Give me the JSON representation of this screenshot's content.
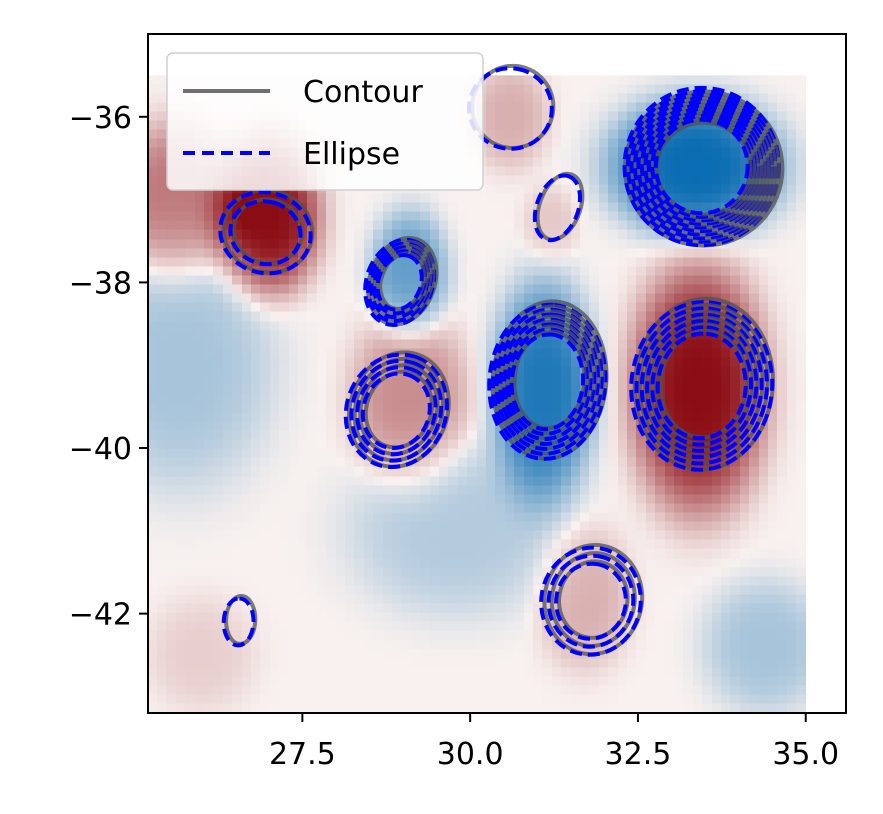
{
  "chart_data": {
    "type": "heatmap",
    "title": "",
    "xlabel": "",
    "ylabel": "",
    "xlim": [
      25.2,
      35.6
    ],
    "ylim": [
      -43.2,
      -35.0
    ],
    "field_extent": {
      "x": [
        25.2,
        35.0
      ],
      "y": [
        -43.2,
        -35.5
      ]
    },
    "xticks": [
      27.5,
      30.0,
      32.5,
      35.0
    ],
    "xtick_labels": [
      "27.5",
      "30.0",
      "32.5",
      "35.0"
    ],
    "yticks": [
      -36,
      -38,
      -40,
      -42
    ],
    "ytick_labels": [
      "−36",
      "−38",
      "−40",
      "−42"
    ],
    "colormap": "diverging red-white-blue",
    "colors": {
      "positive": "#8b0d14",
      "negative": "#0a6cb2",
      "neutral": "#f8f1ef",
      "contour": "#606060",
      "ellipse": "#0000ff"
    },
    "legend": {
      "position": "upper-left",
      "entries": [
        {
          "label": "Contour",
          "style": "solid",
          "color": "#707070"
        },
        {
          "label": "Ellipse",
          "style": "dashed",
          "color": "#0000ff"
        }
      ]
    },
    "anomalies": [
      {
        "cx": 27.0,
        "cy": -37.2,
        "rx": 0.65,
        "ry": 0.8,
        "amp": 1.0
      },
      {
        "cx": 29.1,
        "cy": -39.4,
        "rx": 0.75,
        "ry": 0.9,
        "amp": 0.4
      },
      {
        "cx": 29.1,
        "cy": -37.9,
        "rx": 0.5,
        "ry": 0.65,
        "amp": -0.6
      },
      {
        "cx": 31.1,
        "cy": -39.3,
        "rx": 0.65,
        "ry": 1.1,
        "amp": -0.9
      },
      {
        "cx": 33.35,
        "cy": -36.6,
        "rx": 1.1,
        "ry": 0.7,
        "amp": -1.0
      },
      {
        "cx": 33.4,
        "cy": -39.3,
        "rx": 0.85,
        "ry": 1.25,
        "amp": 1.0
      },
      {
        "cx": 31.7,
        "cy": -41.8,
        "rx": 0.6,
        "ry": 0.75,
        "amp": 0.25
      },
      {
        "cx": 30.6,
        "cy": -36.0,
        "rx": 0.5,
        "ry": 0.55,
        "amp": 0.25
      },
      {
        "cx": 31.2,
        "cy": -37.3,
        "rx": 0.35,
        "ry": 0.4,
        "amp": 0.15
      },
      {
        "cx": 25.7,
        "cy": -39.0,
        "rx": 1.2,
        "ry": 1.3,
        "amp": -0.3
      },
      {
        "cx": 29.8,
        "cy": -41.0,
        "rx": 1.4,
        "ry": 0.9,
        "amp": -0.25
      },
      {
        "cx": 34.4,
        "cy": -42.4,
        "rx": 0.8,
        "ry": 0.7,
        "amp": -0.3
      },
      {
        "cx": 25.6,
        "cy": -37.0,
        "rx": 0.8,
        "ry": 0.8,
        "amp": 0.5
      },
      {
        "cx": 26.0,
        "cy": -42.5,
        "rx": 0.7,
        "ry": 0.6,
        "amp": 0.12
      }
    ],
    "eddies": [
      {
        "cx": 26.95,
        "cy": -37.4,
        "rx": 0.6,
        "ry": 0.55,
        "rot": 75,
        "rings": 2
      },
      {
        "cx": 28.95,
        "cy": -38.0,
        "rx": 0.65,
        "ry": 0.4,
        "rot": 70,
        "rings": 5
      },
      {
        "cx": 28.9,
        "cy": -39.55,
        "rx": 0.85,
        "ry": 0.6,
        "rot": 70,
        "rings": 4
      },
      {
        "cx": 31.15,
        "cy": -39.2,
        "rx": 1.15,
        "ry": 0.7,
        "rot": 85,
        "rings": 7
      },
      {
        "cx": 30.6,
        "cy": -35.9,
        "rx": 0.6,
        "ry": 0.5,
        "rot": 80,
        "rings": 1
      },
      {
        "cx": 31.3,
        "cy": -37.1,
        "rx": 0.5,
        "ry": 0.25,
        "rot": 70,
        "rings": 1
      },
      {
        "cx": 33.45,
        "cy": -36.6,
        "rx": 1.15,
        "ry": 0.95,
        "rot": 0,
        "rings": 10
      },
      {
        "cx": 33.45,
        "cy": -39.25,
        "rx": 1.25,
        "ry": 0.85,
        "rot": 85,
        "rings": 6
      },
      {
        "cx": 31.8,
        "cy": -41.85,
        "rx": 0.8,
        "ry": 0.6,
        "rot": 80,
        "rings": 3
      },
      {
        "cx": 26.55,
        "cy": -42.1,
        "rx": 0.35,
        "ry": 0.18,
        "rot": 88,
        "rings": 1
      }
    ]
  }
}
